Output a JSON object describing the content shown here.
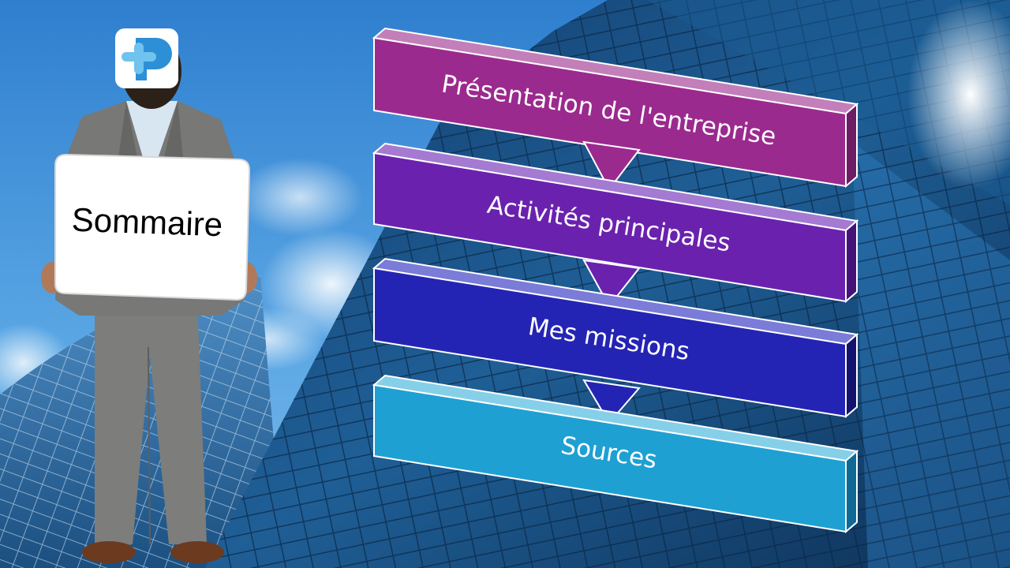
{
  "slide": {
    "sign_label": "Sommaire",
    "logo": {
      "icon": "p-plus-logo-icon",
      "colors": [
        "#2d8fd6",
        "#6fc3ee"
      ]
    }
  },
  "steps": [
    {
      "label": "Présentation de l'entreprise",
      "color": "#9b2a8e"
    },
    {
      "label": "Activités principales",
      "color": "#6a22ae"
    },
    {
      "label": "Mes missions",
      "color": "#2424b4"
    },
    {
      "label": "Sources",
      "color": "#1fa0d2"
    }
  ],
  "colors": {
    "sky": "#3f8fd8",
    "cloud": "#ffffff",
    "suit": "#7a7a78"
  }
}
